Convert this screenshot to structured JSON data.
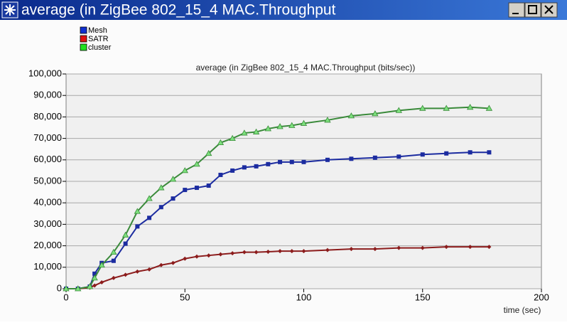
{
  "window": {
    "title": "average (in ZigBee 802_15_4 MAC.Throughput"
  },
  "chart_data": {
    "type": "line",
    "title": "average (in ZigBee 802_15_4 MAC.Throughput (bits/sec))",
    "x_label": "time (sec)",
    "x": [
      0,
      5,
      10,
      12,
      15,
      20,
      25,
      30,
      35,
      40,
      45,
      50,
      55,
      60,
      65,
      70,
      75,
      80,
      85,
      90,
      95,
      100,
      110,
      120,
      130,
      140,
      150,
      160,
      170,
      178
    ],
    "series": [
      {
        "name": "Mesh",
        "color": "#1c2ca0",
        "marker": "square",
        "values": [
          0,
          0,
          1000,
          7000,
          12000,
          13000,
          21000,
          29000,
          33000,
          38000,
          42000,
          46000,
          47000,
          48000,
          53000,
          55000,
          56500,
          57000,
          58000,
          59000,
          59000,
          59000,
          60000,
          60500,
          61000,
          61500,
          62500,
          63000,
          63500,
          63500
        ]
      },
      {
        "name": "SATR",
        "color": "#8c1c1c",
        "marker": "diamond",
        "values": [
          0,
          0,
          500,
          1500,
          3000,
          5000,
          6500,
          8000,
          9000,
          11000,
          12000,
          14000,
          15000,
          15500,
          16000,
          16500,
          17000,
          17000,
          17200,
          17500,
          17500,
          17500,
          18000,
          18500,
          18500,
          19000,
          19000,
          19500,
          19500,
          19500
        ]
      },
      {
        "name": "cluster",
        "color": "#3a8a3a",
        "marker": "triangle",
        "values": [
          0,
          0,
          1000,
          5000,
          11000,
          17000,
          25000,
          36000,
          42000,
          47000,
          51000,
          55000,
          58000,
          63000,
          68000,
          70000,
          72500,
          73000,
          74500,
          75500,
          76000,
          77000,
          78500,
          80500,
          81500,
          83000,
          84000,
          84000,
          84500,
          84000
        ]
      }
    ],
    "legend_colors": [
      "#1030d0",
      "#e01010",
      "#20e020"
    ],
    "xlim": [
      0,
      200
    ],
    "xticks": [
      0,
      50,
      100,
      150,
      200
    ],
    "ylim": [
      0,
      100000
    ],
    "yticks": [
      0,
      {
        "value": 10000,
        "label": "10,000"
      },
      {
        "value": 20000,
        "label": "20,000"
      },
      {
        "value": 30000,
        "label": "30,000"
      },
      {
        "value": 40000,
        "label": "40,000"
      },
      {
        "value": 50000,
        "label": "50,000"
      },
      {
        "value": 60000,
        "label": "60,000"
      },
      {
        "value": 70000,
        "label": "70,000"
      },
      {
        "value": 80000,
        "label": "80,000"
      },
      {
        "value": 90000,
        "label": "90,000"
      },
      {
        "value": 100000,
        "label": "100,000"
      }
    ],
    "grid": true,
    "legend": "top-left"
  }
}
